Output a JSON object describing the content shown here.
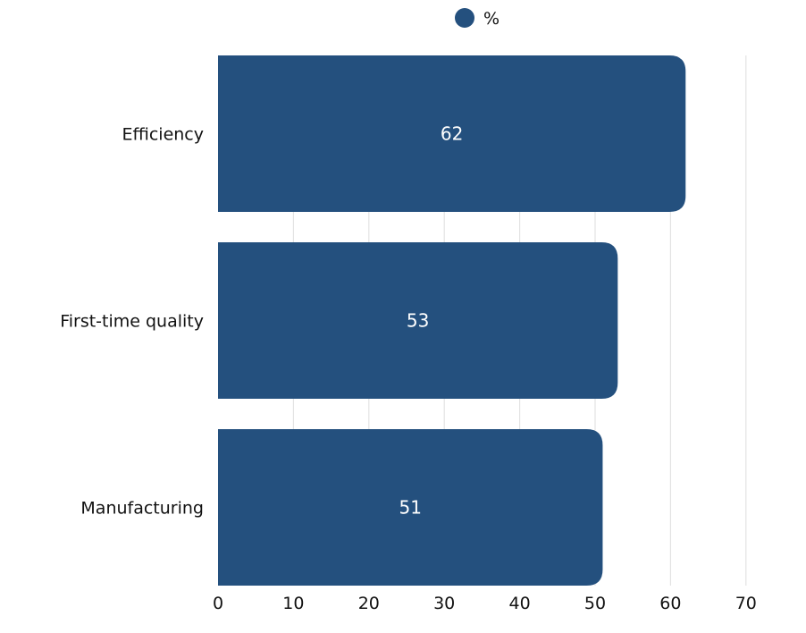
{
  "chart_data": {
    "type": "bar",
    "orientation": "horizontal",
    "categories": [
      "Efficiency",
      "First-time quality",
      "Manufacturing"
    ],
    "series": [
      {
        "name": "%",
        "values": [
          62,
          53,
          51
        ],
        "color": "#24507e"
      }
    ],
    "xlim": [
      0,
      70
    ],
    "xticks": [
      0,
      10,
      20,
      30,
      40,
      50,
      60,
      70
    ],
    "grid": "vertical",
    "legend": "top-center",
    "data_labels": "inside-center"
  },
  "colors": {
    "bar": "#24507e",
    "bar_label": "#ffffff",
    "grid": "#e3e3e3",
    "text": "#111111"
  }
}
